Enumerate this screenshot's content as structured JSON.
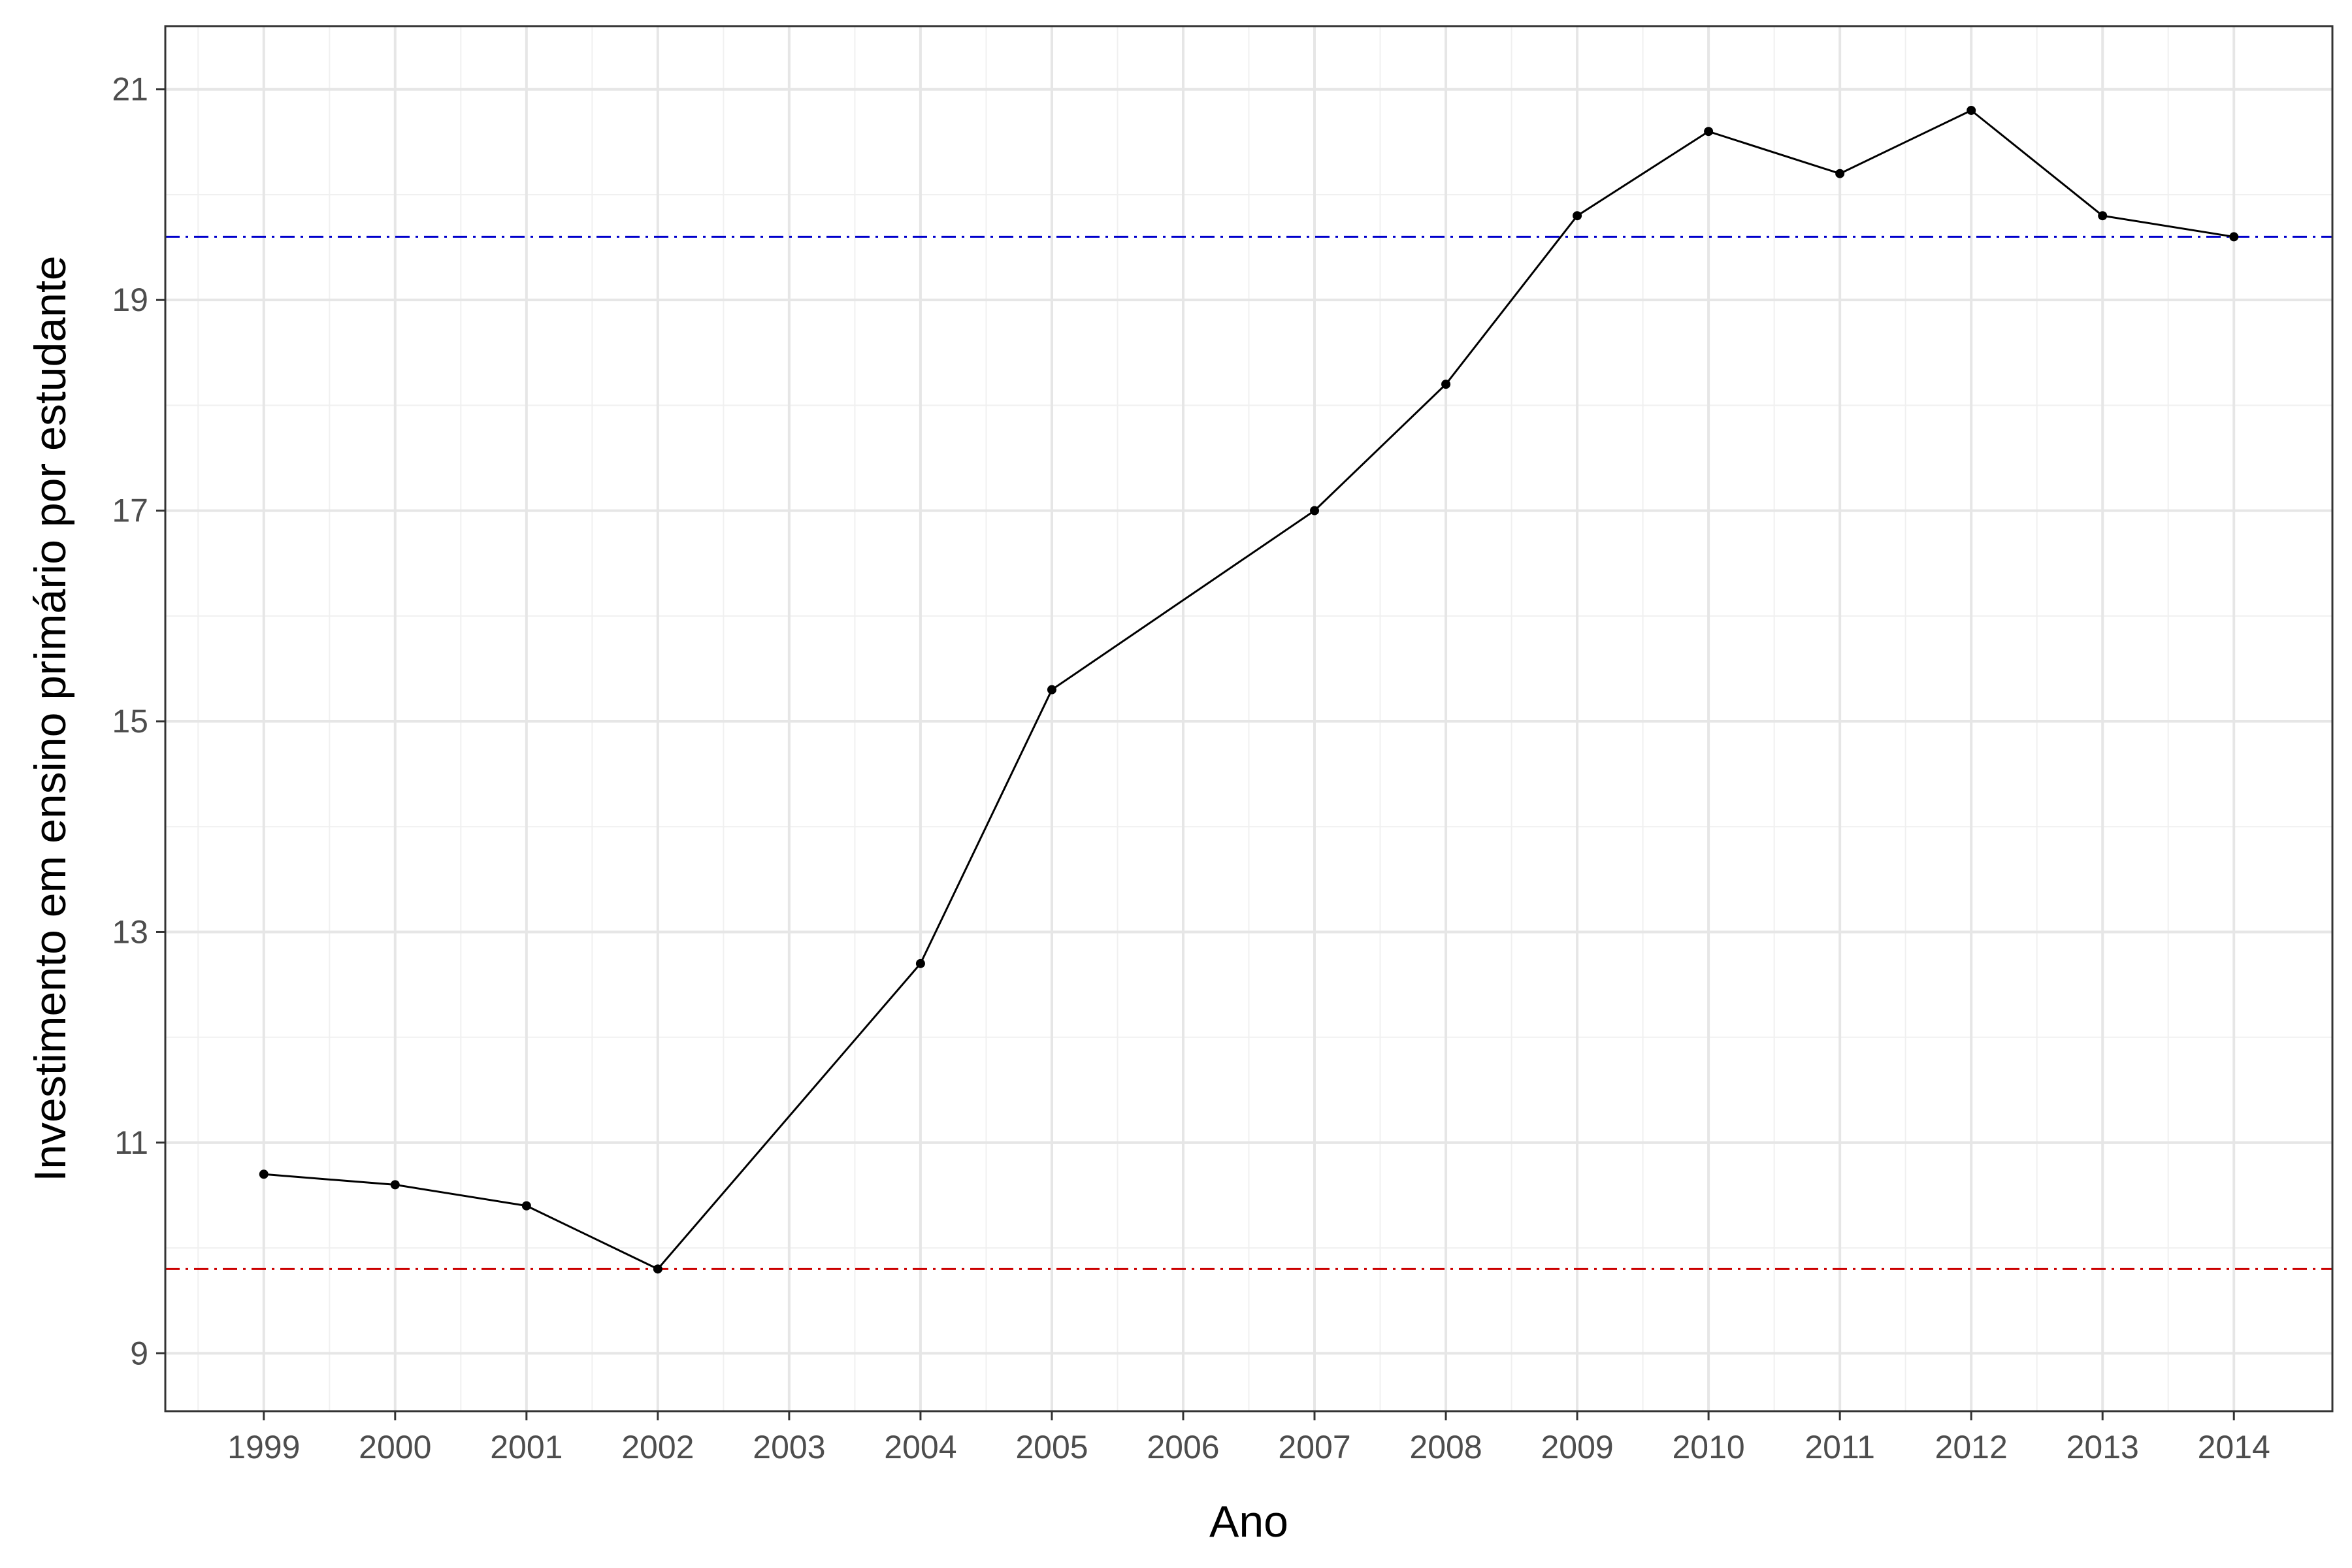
{
  "chart_data": {
    "type": "line",
    "title": "",
    "xlabel": "Ano",
    "ylabel": "Investimento em ensino primário por estudante",
    "x": [
      1999,
      2000,
      2001,
      2002,
      2004,
      2005,
      2007,
      2008,
      2009,
      2010,
      2011,
      2012,
      2013,
      2014
    ],
    "y": [
      10.7,
      10.6,
      10.4,
      9.8,
      12.7,
      15.3,
      17.0,
      18.2,
      19.8,
      20.6,
      20.2,
      20.8,
      19.8,
      19.6
    ],
    "x_ticks": [
      "1999",
      "2000",
      "2001",
      "2002",
      "2003",
      "2004",
      "2005",
      "2006",
      "2007",
      "2008",
      "2009",
      "2010",
      "2011",
      "2012",
      "2013",
      "2014"
    ],
    "y_ticks": [
      "9",
      "11",
      "13",
      "15",
      "17",
      "19",
      "21"
    ],
    "xlim": [
      1998.25,
      2014.75
    ],
    "ylim": [
      8.45,
      21.6
    ],
    "reference_lines": [
      {
        "y": 19.6,
        "color": "#0000cc",
        "style": "dashdot"
      },
      {
        "y": 9.8,
        "color": "#cc0000",
        "style": "dashdot"
      }
    ],
    "line_color": "#000000",
    "grid": true,
    "legend": "none"
  }
}
